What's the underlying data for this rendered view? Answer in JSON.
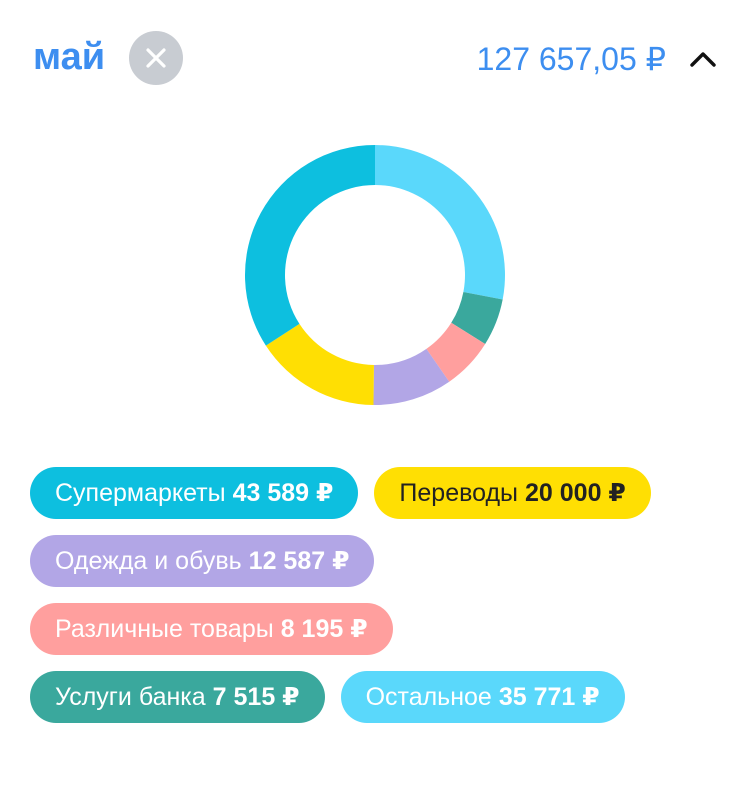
{
  "header": {
    "month": "май",
    "total": "127 657,05 ₽",
    "clear_icon": "close-icon",
    "collapse_icon": "chevron-up-icon"
  },
  "chart_data": {
    "type": "pie",
    "variant": "donut",
    "start": "top",
    "direction": "clockwise",
    "segments": [
      {
        "label": "Остальное",
        "value": 35771,
        "color": "#5ad8fb"
      },
      {
        "label": "Услуги банка",
        "value": 7515,
        "color": "#3aa89d"
      },
      {
        "label": "Различные товары",
        "value": 8195,
        "color": "#ff9f9e"
      },
      {
        "label": "Одежда и обувь",
        "value": 12587,
        "color": "#b2a6e6"
      },
      {
        "label": "Переводы",
        "value": 20000,
        "color": "#ffdf03"
      },
      {
        "label": "Супермаркеты",
        "value": 43589,
        "color": "#0dbfdf"
      }
    ]
  },
  "legend": {
    "rows": [
      [
        {
          "label": "Супермаркеты",
          "amount": "43 589 ₽",
          "bg": "#0dbfdf",
          "fg": "#ffffff"
        },
        {
          "label": "Переводы",
          "amount": "20 000 ₽",
          "bg": "#ffdf03",
          "fg": "#222222"
        }
      ],
      [
        {
          "label": "Одежда и обувь",
          "amount": "12 587 ₽",
          "bg": "#b2a6e6",
          "fg": "#ffffff"
        }
      ],
      [
        {
          "label": "Различные товары",
          "amount": "8 195 ₽",
          "bg": "#ff9f9e",
          "fg": "#ffffff"
        }
      ],
      [
        {
          "label": "Услуги банка",
          "amount": "7 515 ₽",
          "bg": "#3aa89d",
          "fg": "#ffffff"
        },
        {
          "label": "Остальное",
          "amount": "35 771 ₽",
          "bg": "#5ad8fb",
          "fg": "#ffffff"
        }
      ]
    ]
  }
}
